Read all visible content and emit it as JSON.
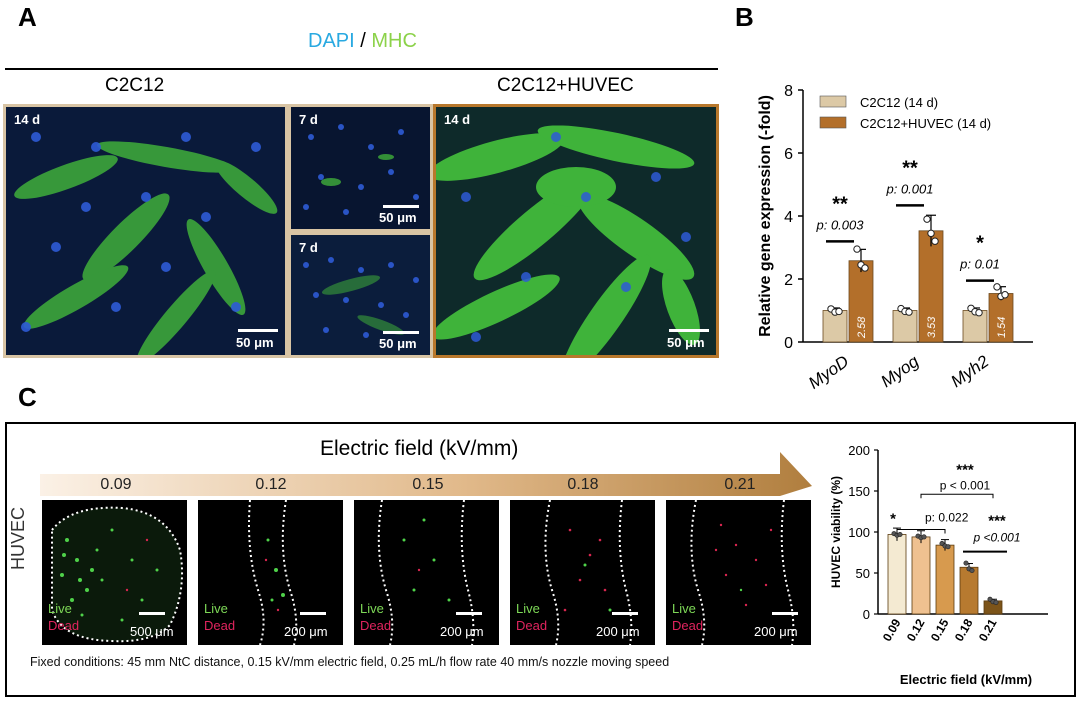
{
  "panels": {
    "a": {
      "letter": "A",
      "legend_dapi": "DAPI",
      "legend_sep": " / ",
      "legend_mhc": "MHC",
      "left_group": "C2C12",
      "right_group": "C2C12+HUVEC",
      "images": [
        {
          "time": "14 d",
          "scale": "50 μm"
        },
        {
          "time": "7 d",
          "scale": "50 μm"
        },
        {
          "time": "7 d",
          "scale": "50 μm"
        },
        {
          "time": "14 d",
          "scale": "50 μm"
        }
      ],
      "colors": {
        "dapi": "#29a9e1",
        "mhc": "#8cd24a",
        "c2c12_frame": "#d8c4a4",
        "huvec_frame": "#b8782c"
      }
    },
    "b": {
      "letter": "B"
    },
    "c": {
      "letter": "C",
      "arrow_title": "Electric field (kV/mm)",
      "row_label": "HUVEC",
      "field_values": [
        "0.09",
        "0.12",
        "0.15",
        "0.18",
        "0.21"
      ],
      "images": [
        {
          "live": "Live",
          "dead": "Dead",
          "scale": "500 μm"
        },
        {
          "live": "Live",
          "dead": "Dead",
          "scale": "200 μm"
        },
        {
          "live": "Live",
          "dead": "Dead",
          "scale": "200 μm"
        },
        {
          "live": "Live",
          "dead": "Dead",
          "scale": "200 μm"
        },
        {
          "live": "Live",
          "dead": "Dead",
          "scale": "200 μm"
        }
      ],
      "caption": "Fixed conditions: 45 mm NtC distance, 0.15 kV/mm electric field, 0.25 mL/h flow rate 40 mm/s nozzle moving speed"
    }
  },
  "chart_data": [
    {
      "id": "B",
      "type": "bar",
      "categories": [
        "MyoD",
        "Myog",
        "Myh2"
      ],
      "series": [
        {
          "name": "C2C12 (14 d)",
          "color": "#dcc9a6",
          "values": [
            1.0,
            1.0,
            1.0
          ],
          "points": [
            [
              1.05,
              0.95,
              0.97
            ],
            [
              1.06,
              0.97,
              0.95
            ],
            [
              1.07,
              0.96,
              0.93
            ]
          ]
        },
        {
          "name": "C2C12+HUVEC (14 d)",
          "color": "#b36f2a",
          "values": [
            2.58,
            3.53,
            1.54
          ],
          "labels": [
            "2.58",
            "3.53",
            "1.54"
          ],
          "points": [
            [
              2.95,
              2.45,
              2.35
            ],
            [
              3.9,
              3.45,
              3.2
            ],
            [
              1.75,
              1.45,
              1.5
            ]
          ]
        }
      ],
      "significance": [
        {
          "stars": "**",
          "p": "p: 0.003"
        },
        {
          "stars": "**",
          "p": "p: 0.001"
        },
        {
          "stars": "*",
          "p": "p: 0.01"
        }
      ],
      "ylabel": "Relative gene expression (-fold)",
      "ylim": [
        0,
        8
      ],
      "yticks": [
        "0",
        "2",
        "4",
        "6",
        "8"
      ]
    },
    {
      "id": "C",
      "type": "bar",
      "categories": [
        "0.09",
        "0.12",
        "0.15",
        "0.18",
        "0.21"
      ],
      "values": [
        97,
        94,
        84,
        57,
        16
      ],
      "colors": [
        "#f4ead2",
        "#efc190",
        "#d79a4e",
        "#b77a30",
        "#7c5419"
      ],
      "points": [
        [
          98,
          96,
          97
        ],
        [
          95,
          93,
          94
        ],
        [
          86,
          83,
          82
        ],
        [
          62,
          55,
          53
        ],
        [
          18,
          15,
          14
        ]
      ],
      "xlabel": "Electric field (kV/mm)",
      "ylabel": "HUVEC viability (%)",
      "ylim": [
        0,
        200
      ],
      "yticks": [
        "0",
        "50",
        "100",
        "150",
        "200"
      ],
      "significance": [
        {
          "stars": "*",
          "p": "p: 0.022"
        },
        {
          "stars": "***",
          "p": "p < 0.001"
        },
        {
          "stars": "***",
          "p": "p <0.001"
        }
      ]
    }
  ]
}
